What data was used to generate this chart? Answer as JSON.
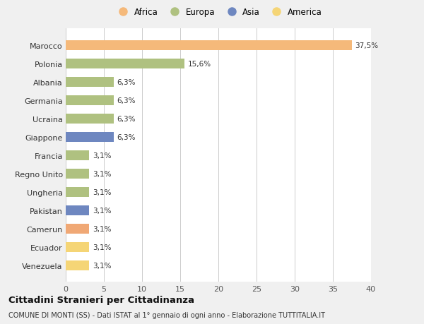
{
  "categories": [
    "Venezuela",
    "Ecuador",
    "Camerun",
    "Pakistan",
    "Ungheria",
    "Regno Unito",
    "Francia",
    "Giappone",
    "Ucraina",
    "Germania",
    "Albania",
    "Polonia",
    "Marocco"
  ],
  "values": [
    3.1,
    3.1,
    3.1,
    3.1,
    3.1,
    3.1,
    3.1,
    6.3,
    6.3,
    6.3,
    6.3,
    15.6,
    37.5
  ],
  "labels": [
    "3,1%",
    "3,1%",
    "3,1%",
    "3,1%",
    "3,1%",
    "3,1%",
    "3,1%",
    "6,3%",
    "6,3%",
    "6,3%",
    "6,3%",
    "15,6%",
    "37,5%"
  ],
  "colors": [
    "#f5d576",
    "#f5d576",
    "#f0a875",
    "#6e87c0",
    "#afc180",
    "#afc180",
    "#afc180",
    "#6e87c0",
    "#afc180",
    "#afc180",
    "#afc180",
    "#afc180",
    "#f5b97a"
  ],
  "legend_labels": [
    "Africa",
    "Europa",
    "Asia",
    "America"
  ],
  "legend_colors": [
    "#f5b97a",
    "#afc180",
    "#6e87c0",
    "#f5d576"
  ],
  "title": "Cittadini Stranieri per Cittadinanza",
  "subtitle": "COMUNE DI MONTI (SS) - Dati ISTAT al 1° gennaio di ogni anno - Elaborazione TUTTITALIA.IT",
  "xlim": [
    0,
    40
  ],
  "xticks": [
    0,
    5,
    10,
    15,
    20,
    25,
    30,
    35,
    40
  ],
  "background_color": "#f0f0f0",
  "plot_bg_color": "#ffffff"
}
